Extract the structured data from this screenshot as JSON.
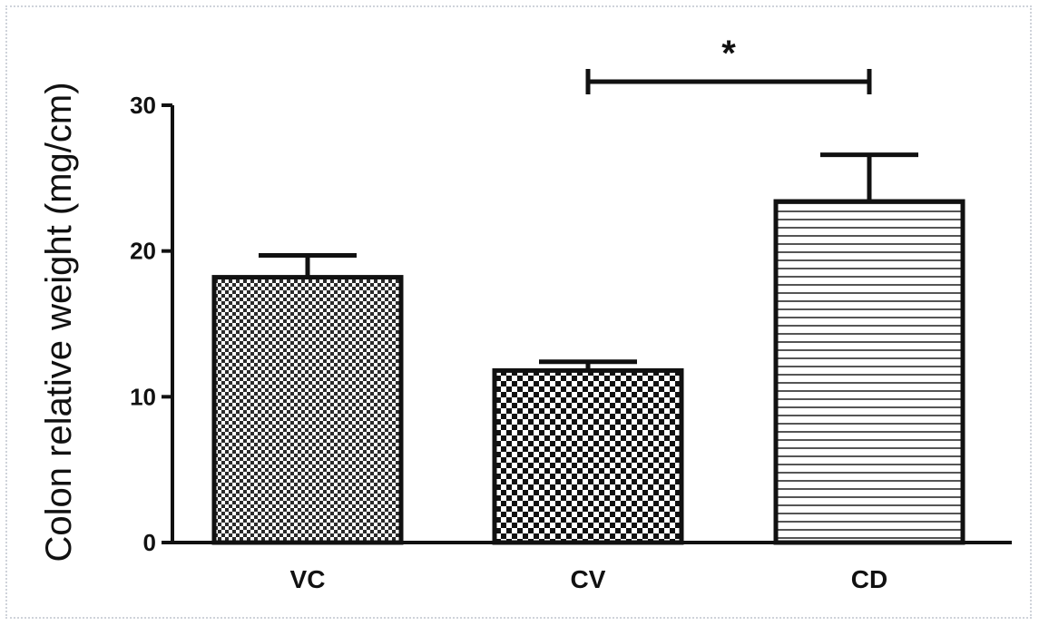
{
  "chart_data": {
    "type": "bar",
    "title": "",
    "xlabel": "",
    "ylabel": "Colon relative weight (mg/cm)",
    "categories": [
      "VC",
      "CV",
      "CD"
    ],
    "values": [
      18.2,
      11.8,
      23.4
    ],
    "errors": [
      1.5,
      0.6,
      3.2
    ],
    "patterns": [
      "fine-checker",
      "checker",
      "horizontal-lines"
    ],
    "ylim": [
      0,
      30
    ],
    "yticks": [
      "0",
      "10",
      "20",
      "30"
    ],
    "grid": false,
    "significance": [
      {
        "from": "CV",
        "to": "CD",
        "label": "*"
      }
    ]
  }
}
